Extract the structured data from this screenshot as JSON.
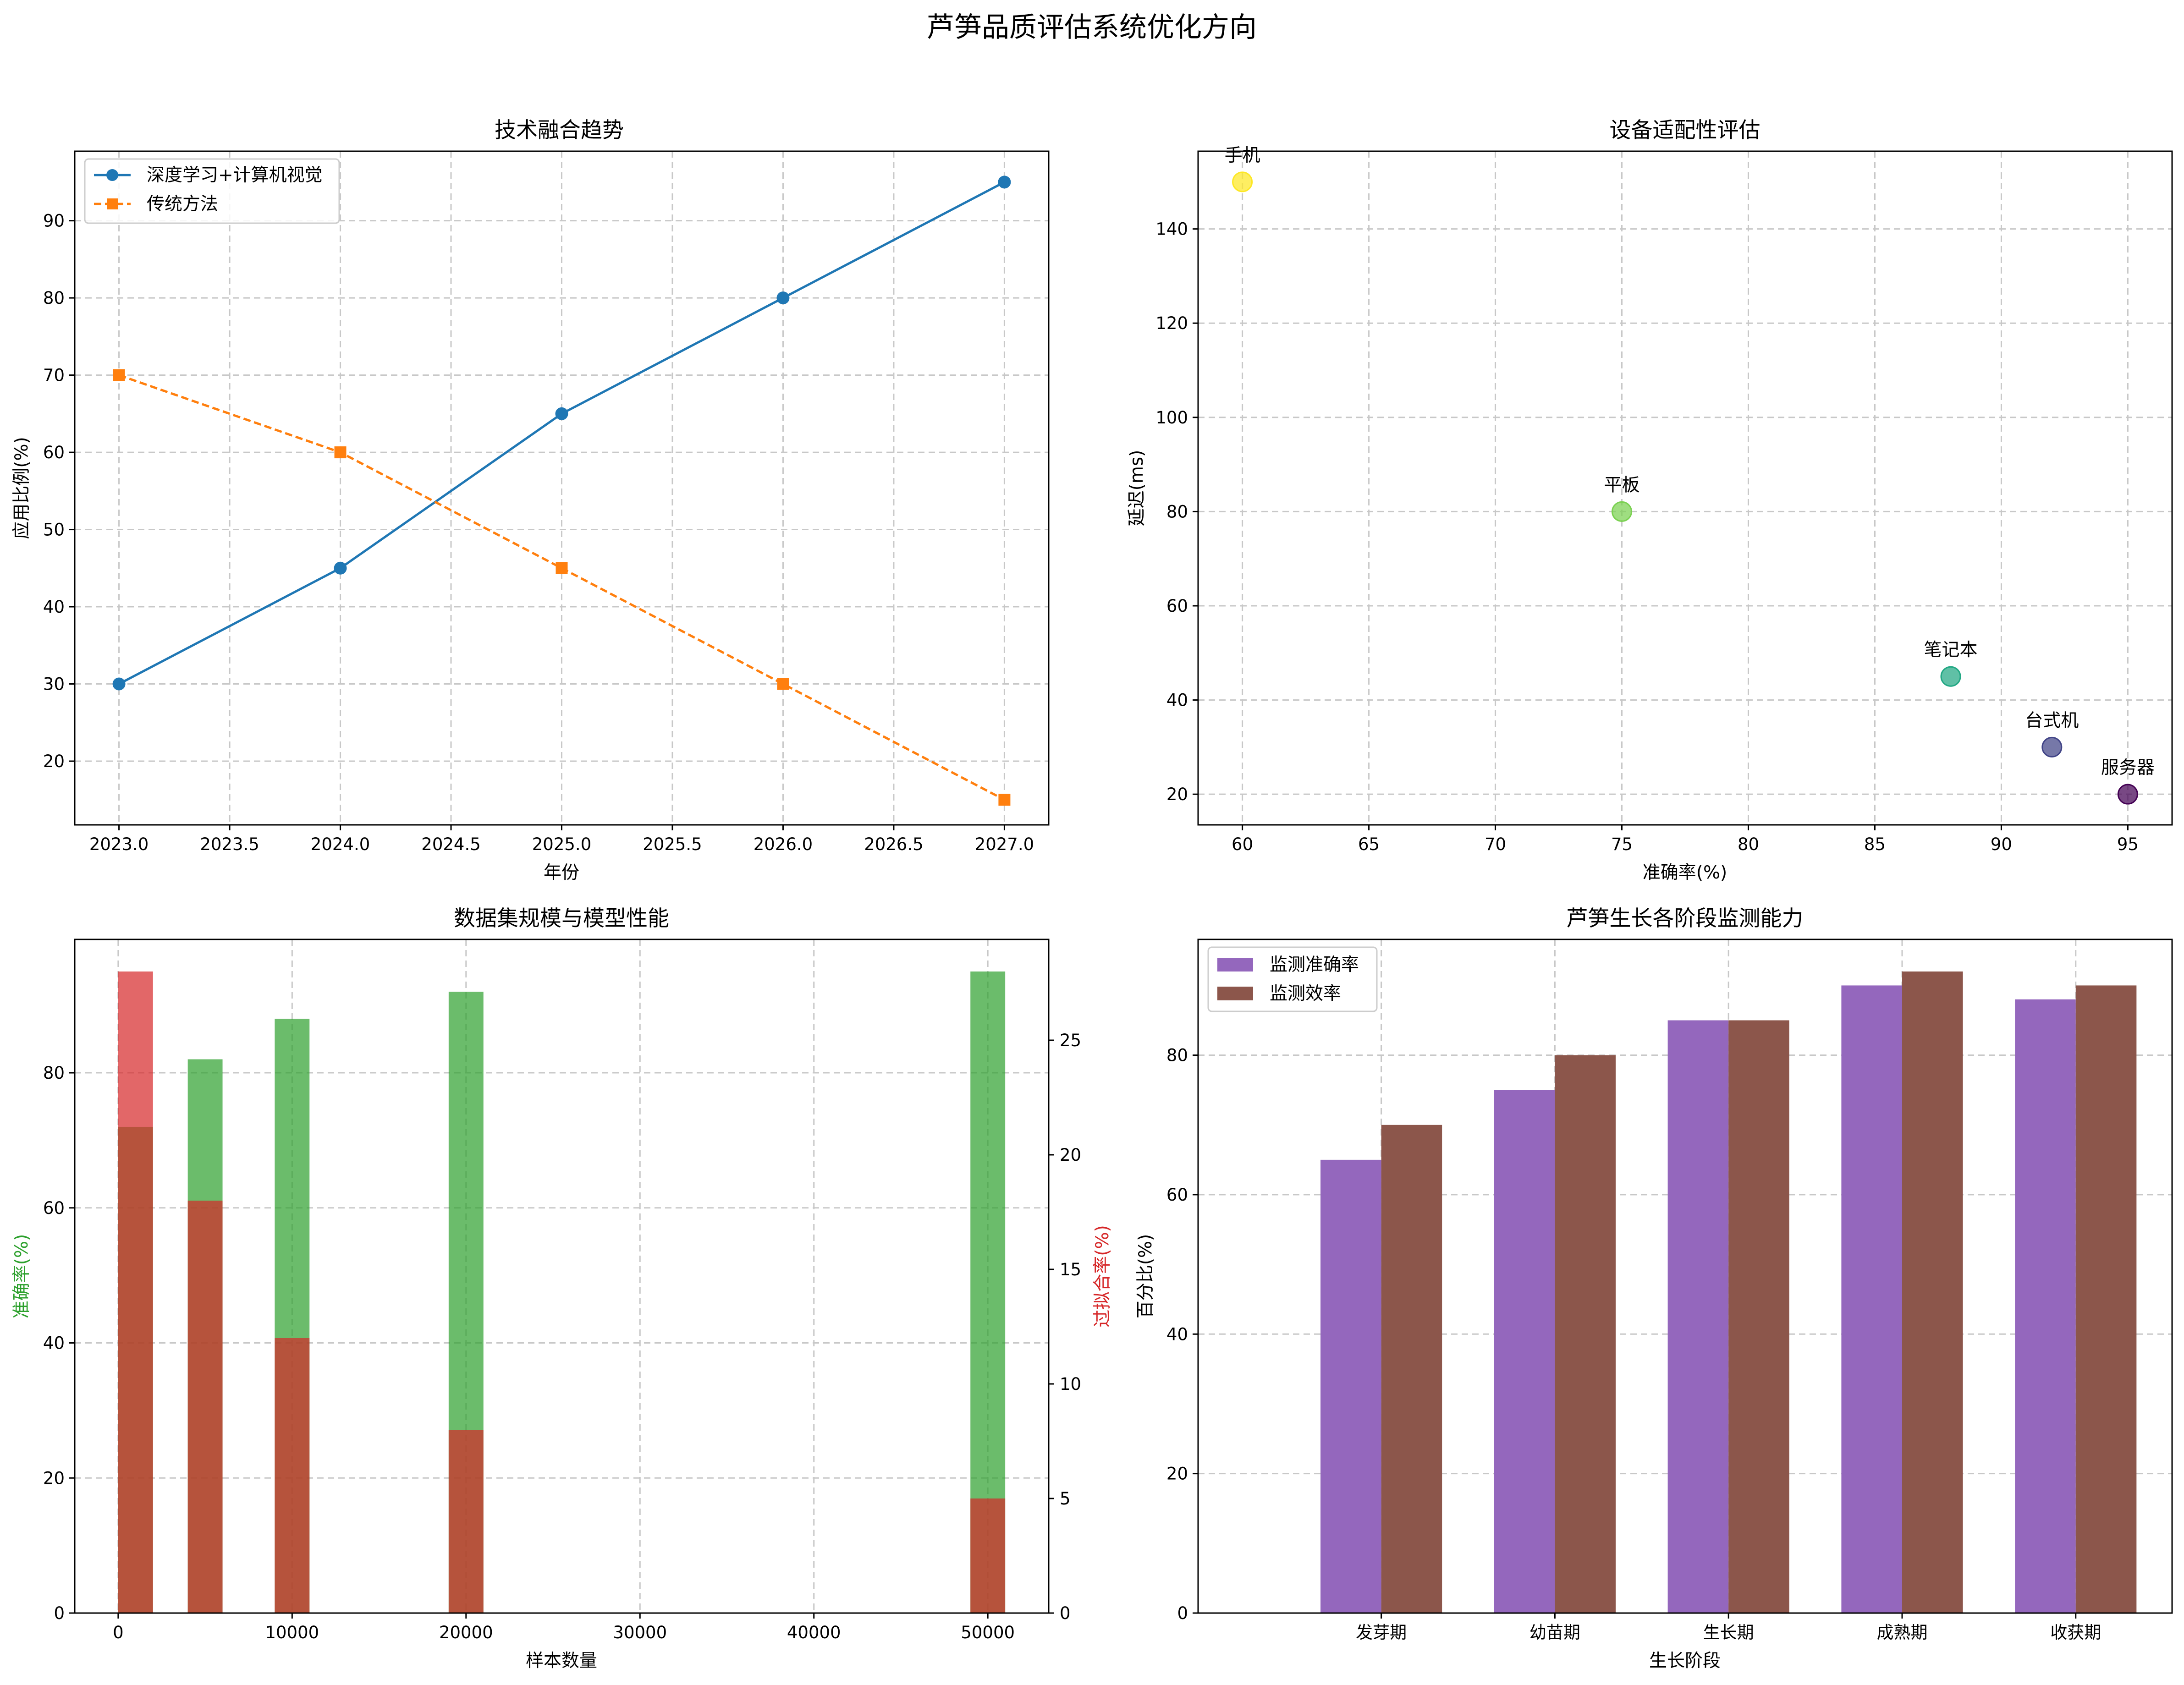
{
  "figure": {
    "title": "芦笋品质评估系统优化方向"
  },
  "chart_data": [
    {
      "type": "line",
      "title": "技术融合趋势",
      "xlabel": "年份",
      "ylabel": "应用比例(%)",
      "x": [
        2023,
        2024,
        2025,
        2026,
        2027
      ],
      "xlim": [
        2022.8,
        2027.2
      ],
      "ylim": [
        11.75,
        99
      ],
      "xticks": [
        "2023.0",
        "2023.5",
        "2024.0",
        "2024.5",
        "2025.0",
        "2025.5",
        "2026.0",
        "2026.5",
        "2027.0"
      ],
      "yticks": [
        "20",
        "30",
        "40",
        "50",
        "60",
        "70",
        "80",
        "90"
      ],
      "grid": true,
      "legend": "top-left",
      "series": [
        {
          "name": "深度学习+计算机视觉",
          "values": [
            30,
            45,
            65,
            80,
            95
          ],
          "color": "#1f77b4",
          "marker": "circle",
          "style": "solid"
        },
        {
          "name": "传统方法",
          "values": [
            70,
            60,
            45,
            30,
            15
          ],
          "color": "#ff7f0e",
          "marker": "square",
          "style": "dashed"
        }
      ]
    },
    {
      "type": "scatter",
      "title": "设备适配性评估",
      "xlabel": "准确率(%)",
      "ylabel": "延迟(ms)",
      "xlim": [
        58.25,
        96.75
      ],
      "ylim": [
        13.5,
        156.5
      ],
      "xticks": [
        "60",
        "65",
        "70",
        "75",
        "80",
        "85",
        "90",
        "95"
      ],
      "yticks": [
        "20",
        "40",
        "60",
        "80",
        "100",
        "120",
        "140"
      ],
      "grid": true,
      "points": [
        {
          "label": "手机",
          "x": 60,
          "y": 150,
          "color": "#fde725"
        },
        {
          "label": "平板",
          "x": 75,
          "y": 80,
          "color": "#7ad151"
        },
        {
          "label": "笔记本",
          "x": 88,
          "y": 45,
          "color": "#22a884"
        },
        {
          "label": "台式机",
          "x": 92,
          "y": 30,
          "color": "#414487"
        },
        {
          "label": "服务器",
          "x": 95,
          "y": 20,
          "color": "#440154"
        }
      ]
    },
    {
      "type": "bar",
      "title": "数据集规模与模型性能",
      "xlabel": "样本数量",
      "ylabel": "准确率(%)",
      "ylabel2": "过拟合率(%)",
      "x": [
        1000,
        5000,
        10000,
        20000,
        50000
      ],
      "xlim": [
        -2500,
        53500
      ],
      "ylim": [
        0,
        99.75
      ],
      "ylim2": [
        0,
        29.4
      ],
      "xticks": [
        "0",
        "10000",
        "20000",
        "30000",
        "40000",
        "50000"
      ],
      "yticks": [
        "0",
        "20",
        "40",
        "60",
        "80"
      ],
      "yticks2": [
        "0",
        "5",
        "10",
        "15",
        "20",
        "25"
      ],
      "grid": true,
      "series": [
        {
          "name": "准确率",
          "values": [
            72,
            82,
            88,
            92,
            95
          ],
          "color": "#2ca02c",
          "axis": "left"
        },
        {
          "name": "过拟合率",
          "values": [
            28,
            18,
            12,
            8,
            5
          ],
          "color": "#d62728",
          "axis": "right"
        }
      ]
    },
    {
      "type": "bar",
      "title": "芦笋生长各阶段监测能力",
      "xlabel": "生长阶段",
      "ylabel": "百分比(%)",
      "categories": [
        "发芽期",
        "幼苗期",
        "生长期",
        "成熟期",
        "收获期"
      ],
      "ylim": [
        0,
        96.6
      ],
      "yticks": [
        "0",
        "20",
        "40",
        "60",
        "80"
      ],
      "grid": true,
      "legend": "top-left",
      "series": [
        {
          "name": "监测准确率",
          "values": [
            65,
            75,
            85,
            90,
            88
          ],
          "color": "#9467bd"
        },
        {
          "name": "监测效率",
          "values": [
            70,
            80,
            85,
            92,
            90
          ],
          "color": "#8c564b"
        }
      ]
    }
  ]
}
